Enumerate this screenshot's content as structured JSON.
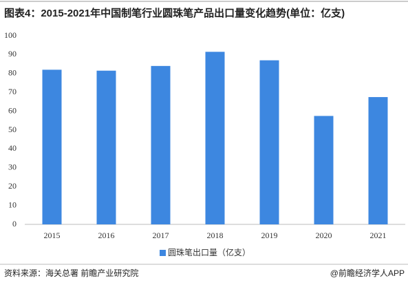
{
  "chart_data": {
    "type": "bar",
    "title": "图表4：2015-2021年中国制笔行业圆珠笔产品出口量变化趋势(单位：亿支)",
    "categories": [
      "2015",
      "2016",
      "2017",
      "2018",
      "2019",
      "2020",
      "2021"
    ],
    "series": [
      {
        "name": "圆珠笔出口量（亿支）",
        "color": "#3d87e0",
        "values": [
          82,
          81.5,
          84,
          91.5,
          87,
          57.5,
          67.5
        ]
      }
    ],
    "ylim": [
      0,
      100
    ],
    "yticks": [
      0,
      10,
      20,
      30,
      40,
      50,
      60,
      70,
      80,
      90,
      100
    ],
    "grid": false,
    "legend": "bottom",
    "source": "资料来源：海关总署 前瞻产业研究院",
    "credit": "@前瞻经济学人APP"
  }
}
